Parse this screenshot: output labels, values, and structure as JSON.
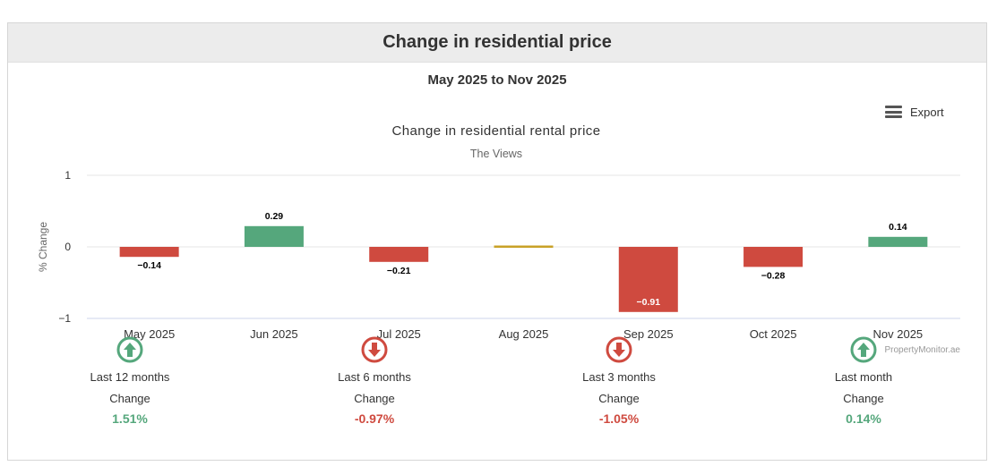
{
  "header": {
    "title": "Change in residential price",
    "date_range": "May 2025 to Nov 2025"
  },
  "export": {
    "label": "Export"
  },
  "colors": {
    "positive": "#55a77c",
    "negative": "#cf4a3f",
    "neutral": "#c9a227"
  },
  "chart_data": {
    "type": "bar",
    "title": "Change in residential rental price",
    "subtitle": "The Views",
    "ylabel": "% Change",
    "xlabel": "",
    "ylim": [
      -1,
      1
    ],
    "yticks": [
      "1",
      "0",
      "−1"
    ],
    "categories": [
      "May 2025",
      "Jun 2025",
      "Jul 2025",
      "Aug 2025",
      "Sep 2025",
      "Oct 2025",
      "Nov 2025"
    ],
    "values": [
      -0.14,
      0.29,
      -0.21,
      0,
      -0.91,
      -0.28,
      0.14
    ],
    "data_labels": [
      "−0.14",
      "0.29",
      "−0.21",
      "",
      "−0.91",
      "−0.28",
      "0.14"
    ],
    "grid": true,
    "credit": "PropertyMonitor.ae"
  },
  "stats": [
    {
      "period": "Last 12 months",
      "label": "Change",
      "value": "1.51%",
      "direction": "up"
    },
    {
      "period": "Last 6 months",
      "label": "Change",
      "value": "-0.97%",
      "direction": "down"
    },
    {
      "period": "Last 3 months",
      "label": "Change",
      "value": "-1.05%",
      "direction": "down"
    },
    {
      "period": "Last month",
      "label": "Change",
      "value": "0.14%",
      "direction": "up"
    }
  ]
}
